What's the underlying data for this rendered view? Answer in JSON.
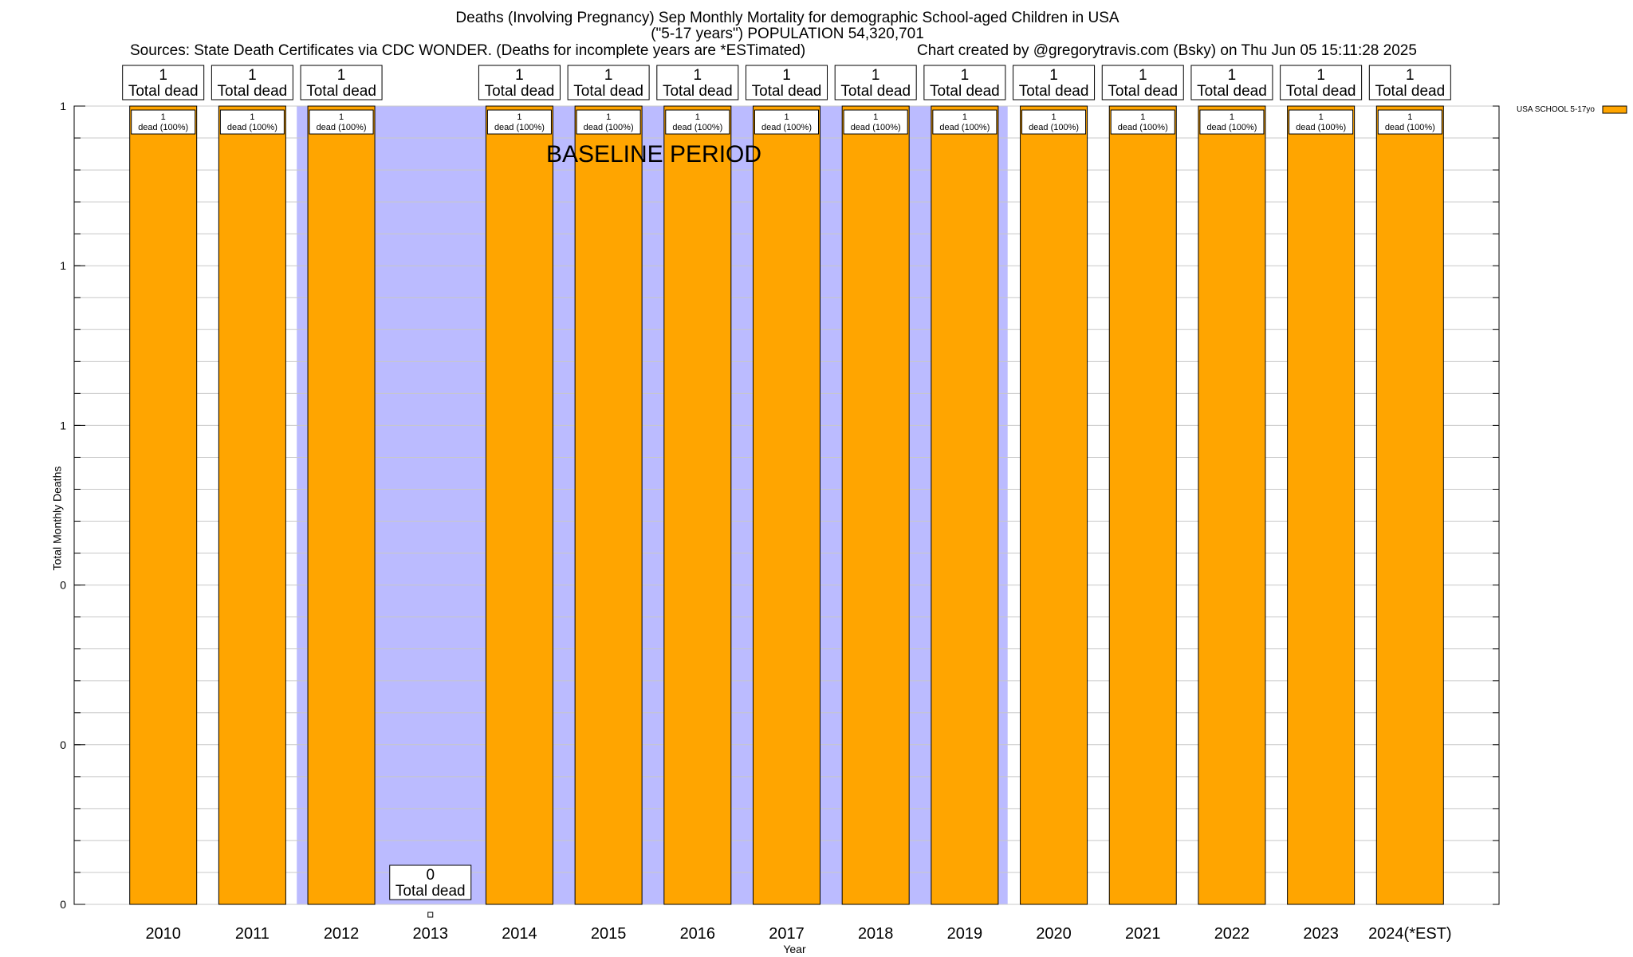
{
  "chart_data": {
    "type": "bar",
    "title": "Deaths (Involving Pregnancy) Sep Monthly Mortality for demographic School-aged Children in USA",
    "subtitle": "(\"5-17 years\") POPULATION 54,320,701",
    "sources": "Sources: State Death Certificates via CDC WONDER. (Deaths for incomplete years are *ESTimated)",
    "credit": "Chart created by @gregorytravis.com (Bsky) on Thu Jun 05 15:11:28 2025",
    "xlabel": "Year",
    "ylabel": "Total Monthly Deaths",
    "ylim": [
      0,
      1
    ],
    "y_tick_labels": [
      "0",
      "0",
      "0",
      "1",
      "1",
      "1"
    ],
    "grid": true,
    "legend_position": "top-right",
    "baseline_label": "BASELINE PERIOD",
    "baseline_color": "#bbbbff",
    "bar_color": "#ffa500",
    "categories": [
      "2010",
      "2011",
      "2012",
      "2013",
      "2014",
      "2015",
      "2016",
      "2017",
      "2018",
      "2019",
      "2020",
      "2021",
      "2022",
      "2023",
      "2024(*EST)"
    ],
    "series": [
      {
        "name": "USA SCHOOL 5-17yo",
        "values": [
          1,
          1,
          1,
          0,
          1,
          1,
          1,
          1,
          1,
          1,
          1,
          1,
          1,
          1,
          1
        ],
        "inner_labels": [
          "1",
          "1",
          "1",
          "",
          "1",
          "1",
          "1",
          "1",
          "1",
          "1",
          "1",
          "1",
          "1",
          "1",
          "1"
        ],
        "inner_sub_labels": [
          "dead (100%)",
          "dead (100%)",
          "dead (100%)",
          "",
          "dead (100%)",
          "dead (100%)",
          "dead (100%)",
          "dead (100%)",
          "dead (100%)",
          "dead (100%)",
          "dead (100%)",
          "dead (100%)",
          "dead (100%)",
          "dead (100%)",
          "dead (100%)"
        ]
      }
    ],
    "total_labels": [
      "1",
      "1",
      "1",
      "0",
      "1",
      "1",
      "1",
      "1",
      "1",
      "1",
      "1",
      "1",
      "1",
      "1",
      "1"
    ],
    "total_sub_label": "Total dead"
  }
}
